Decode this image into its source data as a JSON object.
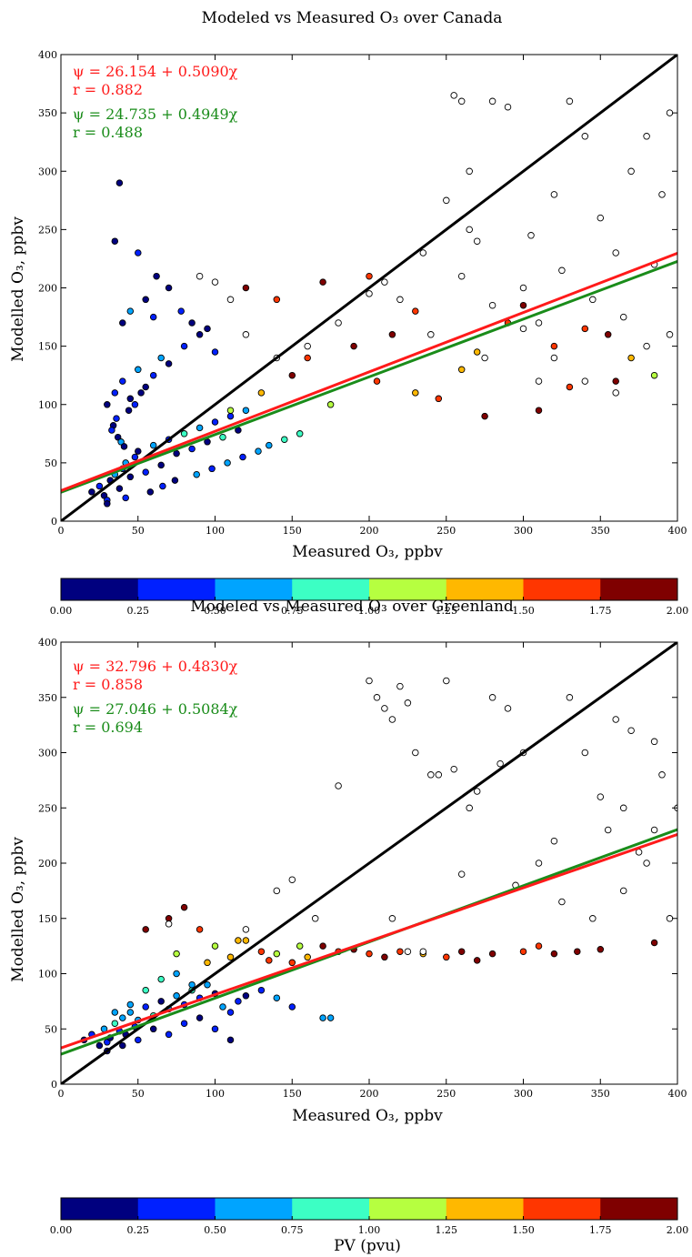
{
  "chart_data": [
    {
      "type": "scatter",
      "title": "Modeled vs Measured O₃ over Canada",
      "xlabel": "Measured O₃, ppbv",
      "ylabel": "Modelled O₃, ppbv",
      "xlim": [
        0,
        400
      ],
      "ylim": [
        0,
        400
      ],
      "x_ticks": [
        "0",
        "50",
        "100",
        "150",
        "200",
        "250",
        "300",
        "350",
        "400"
      ],
      "y_ticks": [
        "0",
        "50",
        "100",
        "150",
        "200",
        "250",
        "300",
        "350",
        "400"
      ],
      "grid": false,
      "reference_line": {
        "name": "1:1",
        "color": "#000000",
        "points": [
          [
            0,
            0
          ],
          [
            400,
            400
          ]
        ]
      },
      "fits": [
        {
          "color": "#ff1a1a",
          "intercept": 26.154,
          "slope": 0.509,
          "equation": "ψ = 26.154 + 0.5090χ",
          "r_label": "r = 0.882"
        },
        {
          "color": "#1a8c1a",
          "intercept": 24.735,
          "slope": 0.4949,
          "equation": "ψ = 24.735 + 0.4949χ",
          "r_label": "r = 0.488"
        }
      ],
      "point_groups": [
        {
          "name": "PV < 1 (blue cluster)",
          "x": [
            20,
            25,
            28,
            30,
            32,
            35,
            38,
            40,
            42,
            45,
            48,
            50,
            55,
            60,
            65,
            70,
            75,
            80,
            85,
            90,
            95,
            100,
            105,
            110,
            115,
            120,
            30,
            35,
            40,
            45,
            50,
            55,
            60,
            65,
            70,
            80,
            90,
            100,
            40,
            45,
            55,
            60,
            38,
            35,
            50,
            62,
            70,
            78,
            85,
            95,
            30,
            42,
            58,
            66,
            74,
            88,
            98,
            108,
            118,
            128,
            135,
            145,
            155,
            52,
            48,
            44,
            36,
            34,
            33,
            37,
            39,
            41
          ],
          "y": [
            25,
            30,
            22,
            18,
            35,
            40,
            28,
            45,
            50,
            38,
            55,
            60,
            42,
            65,
            48,
            70,
            58,
            75,
            62,
            80,
            68,
            85,
            72,
            90,
            78,
            95,
            100,
            110,
            120,
            105,
            130,
            115,
            125,
            140,
            135,
            150,
            160,
            145,
            170,
            180,
            190,
            175,
            290,
            240,
            230,
            210,
            200,
            180,
            170,
            165,
            15,
            20,
            25,
            30,
            35,
            40,
            45,
            50,
            55,
            60,
            65,
            70,
            75,
            110,
            100,
            95,
            88,
            82,
            78,
            72,
            68,
            64
          ],
          "pv": [
            0.1,
            0.3,
            0.2,
            0.4,
            0.1,
            0.6,
            0.2,
            0.3,
            0.5,
            0.1,
            0.4,
            0.2,
            0.3,
            0.6,
            0.1,
            0.4,
            0.2,
            0.8,
            0.3,
            0.5,
            0.1,
            0.4,
            0.9,
            0.3,
            0.2,
            0.7,
            0.1,
            0.4,
            0.3,
            0.2,
            0.5,
            0.1,
            0.3,
            0.6,
            0.2,
            0.4,
            0.1,
            0.3,
            0.2,
            0.5,
            0.1,
            0.4,
            0.1,
            0.2,
            0.3,
            0.1,
            0.2,
            0.3,
            0.1,
            0.2,
            0.2,
            0.3,
            0.1,
            0.4,
            0.2,
            0.5,
            0.3,
            0.6,
            0.4,
            0.7,
            0.5,
            0.8,
            0.9,
            0.1,
            0.3,
            0.2,
            0.4,
            0.1,
            0.3,
            0.2,
            0.5,
            0.1
          ]
        },
        {
          "name": "PV 1–2 (warm points)",
          "x": [
            110,
            130,
            150,
            160,
            175,
            190,
            205,
            215,
            230,
            245,
            260,
            275,
            290,
            300,
            320,
            340,
            360,
            385,
            120,
            140,
            170,
            200,
            230,
            270,
            310,
            330,
            355,
            370
          ],
          "y": [
            95,
            110,
            125,
            140,
            100,
            150,
            120,
            160,
            110,
            105,
            130,
            90,
            170,
            185,
            150,
            165,
            120,
            125,
            200,
            190,
            205,
            210,
            180,
            145,
            95,
            115,
            160,
            140
          ],
          "pv": [
            1.1,
            1.4,
            1.9,
            1.6,
            1.2,
            1.8,
            1.5,
            1.9,
            1.3,
            1.7,
            1.4,
            1.9,
            1.6,
            1.8,
            1.5,
            1.7,
            1.9,
            1.2,
            1.8,
            1.6,
            1.9,
            1.7,
            1.5,
            1.3,
            1.9,
            1.6,
            1.8,
            1.4
          ]
        },
        {
          "name": "Stratospheric (open circles)",
          "x": [
            90,
            100,
            110,
            120,
            140,
            160,
            180,
            200,
            210,
            220,
            235,
            250,
            255,
            260,
            265,
            270,
            280,
            290,
            300,
            310,
            320,
            330,
            340,
            350,
            360,
            370,
            380,
            390,
            395,
            260,
            280,
            300,
            320,
            340,
            360,
            380,
            240,
            275,
            310,
            345,
            385,
            265,
            305,
            325,
            365,
            395
          ],
          "y": [
            210,
            205,
            190,
            160,
            140,
            150,
            170,
            195,
            205,
            190,
            230,
            275,
            365,
            360,
            300,
            240,
            360,
            355,
            200,
            170,
            280,
            360,
            330,
            260,
            230,
            300,
            330,
            280,
            350,
            210,
            185,
            165,
            140,
            120,
            110,
            150,
            160,
            140,
            120,
            190,
            220,
            250,
            245,
            215,
            175,
            160
          ],
          "pv": null
        }
      ]
    },
    {
      "type": "scatter",
      "title": "Modeled vs Measured O₃ over Greenland",
      "xlabel": "Measured O₃, ppbv",
      "ylabel": "Modelled O₃, ppbv",
      "xlim": [
        0,
        400
      ],
      "ylim": [
        0,
        400
      ],
      "x_ticks": [
        "0",
        "50",
        "100",
        "150",
        "200",
        "250",
        "300",
        "350",
        "400"
      ],
      "y_ticks": [
        "0",
        "50",
        "100",
        "150",
        "200",
        "250",
        "300",
        "350",
        "400"
      ],
      "grid": false,
      "reference_line": {
        "name": "1:1",
        "color": "#000000",
        "points": [
          [
            0,
            0
          ],
          [
            400,
            400
          ]
        ]
      },
      "fits": [
        {
          "color": "#ff1a1a",
          "intercept": 32.796,
          "slope": 0.483,
          "equation": "ψ = 32.796 + 0.4830χ",
          "r_label": "r = 0.858"
        },
        {
          "color": "#1a8c1a",
          "intercept": 27.046,
          "slope": 0.5084,
          "equation": "ψ = 27.046 + 0.5084χ",
          "r_label": "r = 0.694"
        }
      ],
      "point_groups": [
        {
          "name": "PV < 1 (blue cluster)",
          "x": [
            15,
            20,
            25,
            28,
            30,
            32,
            35,
            38,
            40,
            42,
            45,
            48,
            50,
            55,
            60,
            65,
            70,
            75,
            80,
            85,
            90,
            95,
            100,
            105,
            110,
            115,
            120,
            130,
            140,
            150,
            170,
            175,
            30,
            40,
            50,
            60,
            70,
            80,
            90,
            100,
            110,
            35,
            45,
            55,
            65,
            75,
            85
          ],
          "y": [
            40,
            45,
            35,
            50,
            38,
            42,
            55,
            48,
            60,
            45,
            65,
            52,
            58,
            70,
            62,
            75,
            68,
            80,
            72,
            85,
            78,
            90,
            82,
            70,
            65,
            75,
            80,
            85,
            78,
            70,
            60,
            60,
            30,
            35,
            40,
            50,
            45,
            55,
            60,
            50,
            40,
            65,
            72,
            85,
            95,
            100,
            90
          ],
          "pv": [
            0.2,
            0.4,
            0.1,
            0.6,
            0.3,
            0.2,
            0.8,
            0.4,
            0.5,
            0.1,
            0.7,
            0.3,
            0.6,
            0.4,
            0.9,
            0.2,
            0.5,
            0.7,
            0.3,
            0.8,
            0.4,
            0.6,
            0.2,
            0.5,
            0.3,
            0.4,
            0.2,
            0.3,
            0.5,
            0.4,
            0.6,
            0.6,
            0.2,
            0.1,
            0.3,
            0.2,
            0.4,
            0.3,
            0.2,
            0.3,
            0.1,
            0.5,
            0.7,
            0.8,
            0.9,
            0.6,
            0.7
          ]
        },
        {
          "name": "PV 1–2 (warm points)",
          "x": [
            55,
            70,
            80,
            90,
            100,
            110,
            120,
            130,
            140,
            150,
            160,
            170,
            180,
            190,
            200,
            210,
            220,
            235,
            250,
            260,
            270,
            280,
            300,
            310,
            320,
            335,
            350,
            385,
            75,
            95,
            115,
            135,
            155
          ],
          "y": [
            140,
            150,
            160,
            140,
            125,
            115,
            130,
            120,
            118,
            110,
            115,
            125,
            120,
            122,
            118,
            115,
            120,
            118,
            115,
            120,
            112,
            118,
            120,
            125,
            118,
            120,
            122,
            128,
            118,
            110,
            130,
            112,
            125
          ],
          "pv": [
            1.9,
            1.8,
            1.9,
            1.6,
            1.2,
            1.4,
            1.3,
            1.5,
            1.1,
            1.7,
            1.4,
            1.9,
            1.6,
            1.8,
            1.5,
            1.9,
            1.7,
            1.3,
            1.6,
            1.9,
            1.8,
            1.9,
            1.5,
            1.7,
            1.9,
            1.8,
            1.9,
            1.8,
            1.2,
            1.4,
            1.3,
            1.6,
            1.2
          ]
        },
        {
          "name": "Stratospheric (open circles)",
          "x": [
            70,
            120,
            140,
            150,
            165,
            180,
            200,
            205,
            210,
            215,
            220,
            225,
            230,
            240,
            245,
            250,
            255,
            265,
            270,
            280,
            285,
            290,
            300,
            310,
            320,
            330,
            340,
            350,
            355,
            360,
            365,
            370,
            375,
            380,
            385,
            390,
            395,
            400,
            215,
            225,
            235,
            260,
            295,
            325,
            345,
            365,
            385
          ],
          "y": [
            145,
            140,
            175,
            185,
            150,
            270,
            365,
            350,
            340,
            330,
            360,
            345,
            300,
            280,
            280,
            365,
            285,
            250,
            265,
            350,
            290,
            340,
            300,
            200,
            220,
            350,
            300,
            260,
            230,
            330,
            250,
            320,
            210,
            200,
            310,
            280,
            150,
            250,
            150,
            120,
            120,
            190,
            180,
            165,
            150,
            175,
            230
          ],
          "pv": null
        }
      ]
    }
  ],
  "colorbars": [
    {
      "colors": [
        "#00007f",
        "#0020ff",
        "#00a4ff",
        "#3cffc4",
        "#b6ff40",
        "#ffb800",
        "#ff3600",
        "#7f0000"
      ],
      "tick_labels": [
        "0.00",
        "0.25",
        "0.50",
        "0.75",
        "1.00",
        "1.25",
        "1.50",
        "1.75",
        "2.00"
      ],
      "label": ""
    },
    {
      "colors": [
        "#00007f",
        "#0020ff",
        "#00a4ff",
        "#3cffc4",
        "#b6ff40",
        "#ffb800",
        "#ff3600",
        "#7f0000"
      ],
      "tick_labels": [
        "0.00",
        "0.25",
        "0.50",
        "0.75",
        "1.00",
        "1.25",
        "1.50",
        "1.75",
        "2.00"
      ],
      "label": "PV (pvu)"
    }
  ]
}
